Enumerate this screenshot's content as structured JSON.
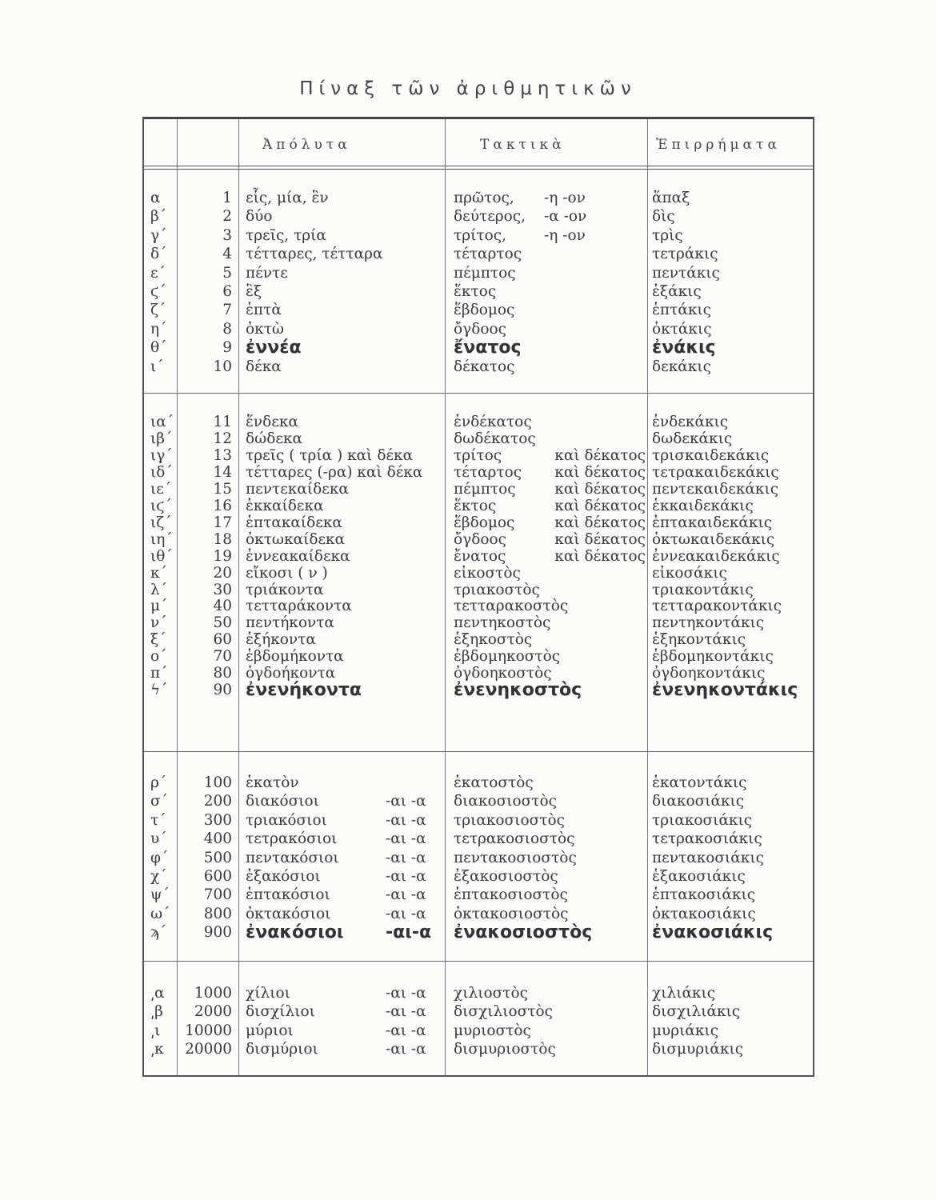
{
  "title": "Πίναξ τῶν ἀριθμητικῶν",
  "headers": {
    "cardinal": "Ἀπόλυτα",
    "ordinal": "Τακτικὰ",
    "adverb": "Ἐπιρρήματα"
  },
  "sections": [
    {
      "rows": [
        {
          "letter": "α",
          "number": "1",
          "cardinal": "εἷς, μία, ἓν",
          "ordinal": "πρῶτος,",
          "ordinal_suffix": "-η -ον",
          "adverb": "ἅπαξ"
        },
        {
          "letter": "β΄",
          "number": "2",
          "cardinal": "δύο",
          "ordinal": "δεύτερος,",
          "ordinal_suffix": "-α -ον",
          "adverb": "δὶς"
        },
        {
          "letter": "γ΄",
          "number": "3",
          "cardinal": "τρεῖς, τρία",
          "ordinal": "τρίτος,",
          "ordinal_suffix": "-η -ον",
          "adverb": "τρὶς"
        },
        {
          "letter": "δ΄",
          "number": "4",
          "cardinal": "τέτταρες, τέτταρα",
          "ordinal": "τέταρτος",
          "adverb": "τετράκις"
        },
        {
          "letter": "ε΄",
          "number": "5",
          "cardinal": "πέντε",
          "ordinal": "πέμπτος",
          "adverb": "πεντάκις"
        },
        {
          "letter": "ϛ΄",
          "number": "6",
          "cardinal": "ἓξ",
          "ordinal": "ἕκτος",
          "adverb": "ἑξάκις"
        },
        {
          "letter": "ζ΄",
          "number": "7",
          "cardinal": "ἑπτὰ",
          "ordinal": "ἕβδομος",
          "adverb": "ἑπτάκις"
        },
        {
          "letter": "η΄",
          "number": "8",
          "cardinal": "ὀκτὼ",
          "ordinal": "ὄγδοος",
          "adverb": "ὀκτάκις"
        },
        {
          "letter": "θ΄",
          "number": "9",
          "cardinal": "ἐννέα",
          "ordinal": "ἔνατος",
          "adverb": "ἐνάκις",
          "bold": true
        },
        {
          "letter": "ι΄",
          "number": "10",
          "cardinal": "δέκα",
          "ordinal": "δέκατος",
          "adverb": "δεκάκις"
        }
      ]
    },
    {
      "rows": [
        {
          "letter": "ια΄",
          "number": "11",
          "cardinal": "ἕνδεκα",
          "ordinal": "ἑνδέκατος",
          "adverb": "ἑνδεκάκις"
        },
        {
          "letter": "ιβ΄",
          "number": "12",
          "cardinal": "δώδεκα",
          "ordinal": "δωδέκατος",
          "adverb": "δωδεκάκις"
        },
        {
          "letter": "ιγ΄",
          "number": "13",
          "cardinal": "τρεῖς ( τρία ) καὶ δέκα",
          "ordinal": "τρίτος",
          "ordinal_suffix": "καὶ δέκατος",
          "adverb": "τρισκαιδεκάκις"
        },
        {
          "letter": "ιδ΄",
          "number": "14",
          "cardinal": "τέτταρες (-ρα) καὶ δέκα",
          "ordinal": "τέταρτος",
          "ordinal_suffix": "καὶ δέκατος",
          "adverb": "τετρακαιδεκάκις"
        },
        {
          "letter": "ιε΄",
          "number": "15",
          "cardinal": "πεντεκαίδεκα",
          "ordinal": "πέμπτος",
          "ordinal_suffix": "καὶ δέκατος",
          "adverb": "πεντεκαιδεκάκις"
        },
        {
          "letter": "ιϛ΄",
          "number": "16",
          "cardinal": "ἑκκαίδεκα",
          "ordinal": "ἕκτος",
          "ordinal_suffix": "καὶ δέκατος",
          "adverb": "ἑκκαιδεκάκις"
        },
        {
          "letter": "ιζ΄",
          "number": "17",
          "cardinal": "ἑπτακαίδεκα",
          "ordinal": "ἕβδομος",
          "ordinal_suffix": "καὶ δέκατος",
          "adverb": "ἑπτακαιδεκάκις"
        },
        {
          "letter": "ιη΄",
          "number": "18",
          "cardinal": "ὀκτωκαίδεκα",
          "ordinal": "ὄγδοος",
          "ordinal_suffix": "καὶ δέκατος",
          "adverb": "ὀκτωκαιδεκάκις"
        },
        {
          "letter": "ιθ΄",
          "number": "19",
          "cardinal": "ἐννεακαίδεκα",
          "ordinal": "ἔνατος",
          "ordinal_suffix": "καὶ δέκατος",
          "adverb": "ἐννεακαιδεκάκις"
        },
        {
          "letter": "κ΄",
          "number": "20",
          "cardinal": "εἴκοσι ( ν )",
          "ordinal": "εἰκοστὸς",
          "adverb": "εἰκοσάκις"
        },
        {
          "letter": "λ΄",
          "number": "30",
          "cardinal": "τριάκοντα",
          "ordinal": "τριακοστὸς",
          "adverb": "τριακοντάκις"
        },
        {
          "letter": "μ΄",
          "number": "40",
          "cardinal": "τετταράκοντα",
          "ordinal": "τετταρακοστὸς",
          "adverb": "τετταρακοντάκις"
        },
        {
          "letter": "ν΄",
          "number": "50",
          "cardinal": "πεντήκοντα",
          "ordinal": "πεντηκοστὸς",
          "adverb": "πεντηκοντάκις"
        },
        {
          "letter": "ξ΄",
          "number": "60",
          "cardinal": "ἑξήκοντα",
          "ordinal": "ἑξηκοστὸς",
          "adverb": "ἑξηκοντάκις"
        },
        {
          "letter": "ο΄",
          "number": "70",
          "cardinal": "ἑβδομήκοντα",
          "ordinal": "ἑβδομηκοστὸς",
          "adverb": "ἑβδομηκοντάκις"
        },
        {
          "letter": "π΄",
          "number": "80",
          "cardinal": "ὀγδοήκοντα",
          "ordinal": "ὀγδοηκοστὸς",
          "adverb": "ὀγδοηκοντάκις"
        },
        {
          "letter": "ϟ΄",
          "number": "90",
          "cardinal": "ἐνενήκοντα",
          "ordinal": "ἐνενηκοστὸς",
          "adverb": "ἐνενηκοντάκις",
          "bold": true
        }
      ]
    },
    {
      "rows": [
        {
          "letter": "ρ΄",
          "number": "100",
          "cardinal": "ἑκατὸν",
          "ordinal": "ἑκατοστὸς",
          "adverb": "ἑκατοντάκις"
        },
        {
          "letter": "σ΄",
          "number": "200",
          "cardinal": "διακόσιοι",
          "cardinal_suffix": "-αι -α",
          "ordinal": "διακοσιοστὸς",
          "adverb": "διακοσιάκις"
        },
        {
          "letter": "τ΄",
          "number": "300",
          "cardinal": "τριακόσιοι",
          "cardinal_suffix": "-αι -α",
          "ordinal": "τριακοσιοστὸς",
          "adverb": "τριακοσιάκις"
        },
        {
          "letter": "υ΄",
          "number": "400",
          "cardinal": "τετρακόσιοι",
          "cardinal_suffix": "-αι -α",
          "ordinal": "τετρακοσιοστὸς",
          "adverb": "τετρακοσιάκις"
        },
        {
          "letter": "φ΄",
          "number": "500",
          "cardinal": "πεντακόσιοι",
          "cardinal_suffix": "-αι -α",
          "ordinal": "πεντακοσιοστὸς",
          "adverb": "πεντακοσιάκις"
        },
        {
          "letter": "χ΄",
          "number": "600",
          "cardinal": "ἑξακόσιοι",
          "cardinal_suffix": "-αι -α",
          "ordinal": "ἑξακοσιοστὸς",
          "adverb": "ἑξακοσιάκις"
        },
        {
          "letter": "ψ΄",
          "number": "700",
          "cardinal": "ἑπτακόσιοι",
          "cardinal_suffix": "-αι -α",
          "ordinal": "ἑπτακοσιοστὸς",
          "adverb": "ἑπτακοσιάκις"
        },
        {
          "letter": "ω΄",
          "number": "800",
          "cardinal": "ὀκτακόσιοι",
          "cardinal_suffix": "-αι -α",
          "ordinal": "ὀκτακοσιοστὸς",
          "adverb": "ὀκτακοσιάκις"
        },
        {
          "letter": "ϡ΄",
          "number": "900",
          "cardinal": "ἐνακόσιοι",
          "cardinal_suffix": "-αι-α",
          "ordinal": "ἐνακοσιοστὸς",
          "adverb": "ἐνακοσιάκις",
          "bold": true
        }
      ]
    },
    {
      "rows": [
        {
          "letter": "͵α",
          "number": "1000",
          "cardinal": "χίλιοι",
          "cardinal_suffix": "-αι -α",
          "ordinal": "χιλιοστὸς",
          "adverb": "χιλιάκις"
        },
        {
          "letter": "͵β",
          "number": "2000",
          "cardinal": "δισχίλιοι",
          "cardinal_suffix": "-αι -α",
          "ordinal": "δισχιλιοστὸς",
          "adverb": "δισχιλιάκις"
        },
        {
          "letter": "͵ι",
          "number": "10000",
          "cardinal": "μύριοι",
          "cardinal_suffix": "-αι -α",
          "ordinal": "μυριοστὸς",
          "adverb": "μυριάκις"
        },
        {
          "letter": "͵κ",
          "number": "20000",
          "cardinal": "δισμύριοι",
          "cardinal_suffix": "-αι -α",
          "ordinal": "δισμυριοστὸς",
          "adverb": "δισμυριάκις"
        }
      ]
    }
  ]
}
